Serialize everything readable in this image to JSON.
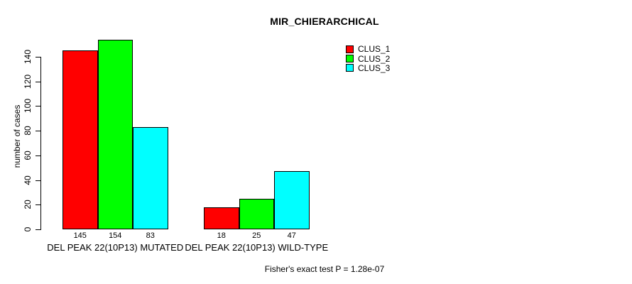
{
  "figure": {
    "background_color": "#ffffff",
    "text_color": "#000000"
  },
  "chart_data": {
    "type": "bar",
    "title": "MIR_CHIERARCHICAL",
    "xlabel": "",
    "ylabel": "number of cases",
    "ylim": [
      0,
      140
    ],
    "yticks": [
      0,
      20,
      40,
      60,
      80,
      100,
      120,
      140
    ],
    "grid": false,
    "categories": [
      "DEL PEAK 22(10P13) MUTATED",
      "DEL PEAK 22(10P13) WILD-TYPE"
    ],
    "series": [
      {
        "name": "CLUS_1",
        "color": "#ff0000",
        "values": [
          145,
          18
        ]
      },
      {
        "name": "CLUS_2",
        "color": "#00ff00",
        "values": [
          154,
          25
        ]
      },
      {
        "name": "CLUS_3",
        "color": "#00ffff",
        "values": [
          83,
          47
        ]
      }
    ],
    "bar_border_color": "#000000",
    "bar_value_labels": [
      [
        "145",
        "154",
        "83"
      ],
      [
        "18",
        "25",
        "47"
      ]
    ],
    "legend": {
      "position": "top-right",
      "entries": [
        "CLUS_1",
        "CLUS_2",
        "CLUS_3"
      ]
    },
    "footnote": "Fisher's exact test P = 1.28e-07"
  }
}
